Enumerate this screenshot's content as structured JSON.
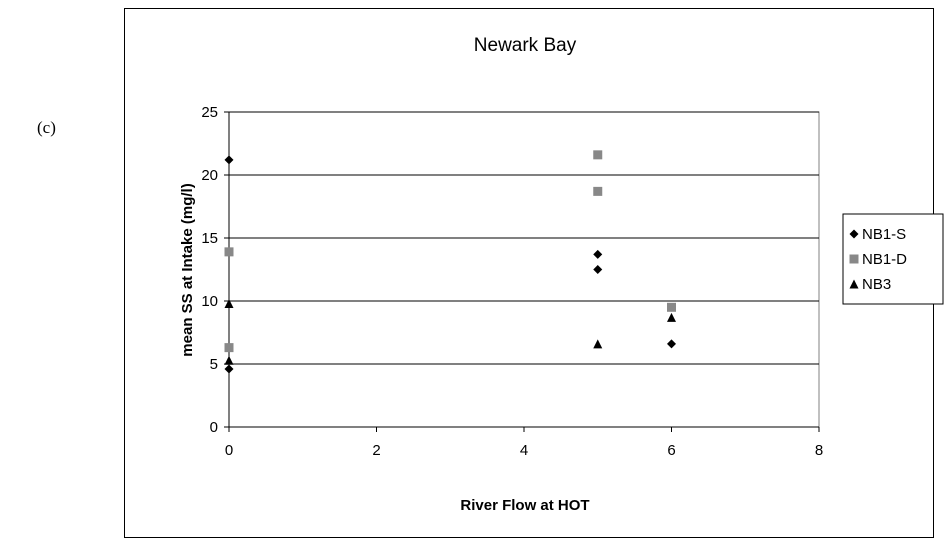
{
  "panel_label": "(c)",
  "chart_data": {
    "type": "scatter",
    "title": "Newark Bay",
    "xlabel": "River Flow at HOT",
    "ylabel": "mean SS at Intake (mg/l)",
    "xlim": [
      0,
      8
    ],
    "ylim": [
      0,
      25
    ],
    "xticks": [
      0,
      2,
      4,
      6,
      8
    ],
    "yticks": [
      0,
      5,
      10,
      15,
      20,
      25
    ],
    "grid": "horizontal",
    "legend_position": "right",
    "series": [
      {
        "name": "NB1-S",
        "marker": "diamond",
        "color": "#000000",
        "points": [
          [
            0,
            21.2
          ],
          [
            0,
            4.6
          ],
          [
            5,
            13.7
          ],
          [
            5,
            12.5
          ],
          [
            6,
            6.6
          ]
        ]
      },
      {
        "name": "NB1-D",
        "marker": "square",
        "color": "#888888",
        "points": [
          [
            0,
            13.9
          ],
          [
            0,
            6.3
          ],
          [
            5,
            21.6
          ],
          [
            5,
            18.7
          ],
          [
            6,
            9.5
          ]
        ]
      },
      {
        "name": "NB3",
        "marker": "triangle",
        "color": "#000000",
        "points": [
          [
            0,
            9.8
          ],
          [
            0,
            5.3
          ],
          [
            5,
            6.6
          ],
          [
            6,
            8.7
          ]
        ]
      }
    ]
  }
}
